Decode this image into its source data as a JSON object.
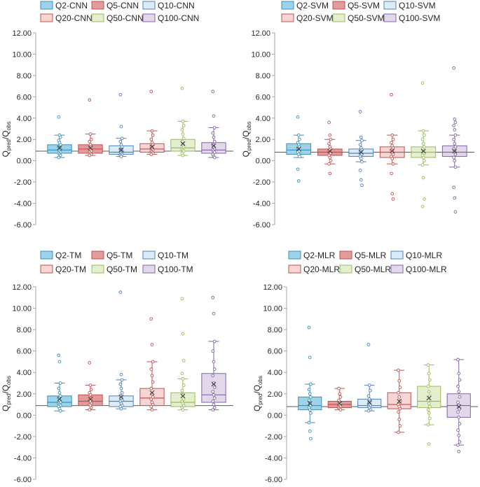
{
  "chart_data": [
    {
      "type": "box",
      "id": "cnn",
      "ylabel_main": "Q",
      "ylabel_sub1": "pred",
      "ylabel_sep": "/Q",
      "ylabel_sub2": "obs",
      "ylim": [
        -6,
        12
      ],
      "yticks": [
        "12.00",
        "10.00",
        "8.00",
        "6.00",
        "4.00",
        "2.00",
        "0.00",
        "-2.00",
        "-4.00",
        "-6.00"
      ],
      "reference_line": 0.9,
      "legend": [
        "Q2-CNN",
        "Q5-CNN",
        "Q10-CNN",
        "Q20-CNN",
        "Q50-CNN",
        "Q100-CNN"
      ],
      "series": [
        {
          "name": "Q2-CNN",
          "q1": 0.7,
          "median": 1.0,
          "q3": 1.5,
          "mean": 1.2,
          "wlo": 0.3,
          "whi": 2.4,
          "points": [
            4.1,
            2.4,
            2.2,
            1.9,
            1.7,
            1.5,
            1.3,
            1.2,
            1.1,
            1.0,
            0.9,
            0.8,
            0.7,
            0.6,
            0.5,
            0.3
          ]
        },
        {
          "name": "Q5-CNN",
          "q1": 0.7,
          "median": 1.1,
          "q3": 1.5,
          "mean": 1.2,
          "wlo": 0.5,
          "whi": 2.5,
          "points": [
            5.7,
            2.5,
            2.0,
            1.8,
            1.5,
            1.3,
            1.1,
            1.0,
            0.9,
            0.8,
            0.7,
            0.6,
            0.5
          ]
        },
        {
          "name": "Q10-CNN",
          "q1": 0.6,
          "median": 0.8,
          "q3": 1.4,
          "mean": 1.0,
          "wlo": 0.4,
          "whi": 2.1,
          "points": [
            6.2,
            3.2,
            2.1,
            1.8,
            1.5,
            1.3,
            1.1,
            1.0,
            0.9,
            0.8,
            0.7,
            0.6,
            0.5,
            0.4
          ]
        },
        {
          "name": "Q20-CNN",
          "q1": 0.8,
          "median": 1.1,
          "q3": 1.6,
          "mean": 1.3,
          "wlo": 0.6,
          "whi": 2.8,
          "points": [
            6.5,
            2.8,
            2.4,
            2.0,
            1.7,
            1.5,
            1.3,
            1.2,
            1.0,
            0.9,
            0.8,
            0.7,
            0.6
          ]
        },
        {
          "name": "Q50-CNN",
          "q1": 0.9,
          "median": 1.2,
          "q3": 2.0,
          "mean": 1.6,
          "wlo": 0.5,
          "whi": 3.7,
          "points": [
            6.8,
            3.7,
            3.3,
            2.9,
            2.5,
            2.1,
            1.8,
            1.5,
            1.3,
            1.1,
            1.0,
            0.9,
            0.7,
            0.5
          ]
        },
        {
          "name": "Q100-CNN",
          "q1": 0.7,
          "median": 1.0,
          "q3": 1.7,
          "mean": 1.4,
          "wlo": 0.3,
          "whi": 3.1,
          "points": [
            6.5,
            4.2,
            3.1,
            2.6,
            2.2,
            1.8,
            1.5,
            1.3,
            1.1,
            1.0,
            0.9,
            0.8,
            0.6,
            0.4,
            0.3
          ]
        }
      ]
    },
    {
      "type": "box",
      "id": "svm",
      "ylabel_main": "Q",
      "ylabel_sub1": "pred",
      "ylabel_sep": "/Q",
      "ylabel_sub2": "obs",
      "ylim": [
        -6,
        12
      ],
      "yticks": [
        "12.00",
        "10.00",
        "8.00",
        "6.00",
        "4.00",
        "2.00",
        "0.00",
        "-2.00",
        "-4.00",
        "-6.00"
      ],
      "reference_line": 0.8,
      "legend": [
        "Q2-SVM",
        "Q5-SVM",
        "Q10-SVM",
        "Q20-SVM",
        "Q50-SVM",
        "Q100-SVM"
      ],
      "series": [
        {
          "name": "Q2-SVM",
          "q1": 0.6,
          "median": 1.0,
          "q3": 1.6,
          "mean": 1.1,
          "wlo": 0.3,
          "whi": 2.4,
          "points": [
            4.1,
            2.4,
            2.0,
            1.7,
            1.5,
            1.3,
            1.1,
            1.0,
            0.9,
            0.8,
            0.6,
            0.4,
            -0.8,
            -1.9
          ]
        },
        {
          "name": "Q5-SVM",
          "q1": 0.5,
          "median": 0.8,
          "q3": 1.1,
          "mean": 0.9,
          "wlo": -0.3,
          "whi": 2.0,
          "points": [
            3.6,
            2.4,
            2.0,
            1.6,
            1.3,
            1.1,
            1.0,
            0.8,
            0.7,
            0.5,
            0.3,
            0.0,
            -0.3,
            -1.2
          ]
        },
        {
          "name": "Q10-SVM",
          "q1": 0.4,
          "median": 0.7,
          "q3": 1.1,
          "mean": 0.8,
          "wlo": -0.1,
          "whi": 1.9,
          "points": [
            4.6,
            2.2,
            1.9,
            1.5,
            1.2,
            1.0,
            0.9,
            0.7,
            0.6,
            0.4,
            0.2,
            -0.1,
            -0.9,
            -1.8,
            -2.3
          ]
        },
        {
          "name": "Q20-SVM",
          "q1": 0.3,
          "median": 0.8,
          "q3": 1.3,
          "mean": 0.9,
          "wlo": -0.3,
          "whi": 2.4,
          "points": [
            6.2,
            2.4,
            2.0,
            1.7,
            1.4,
            1.2,
            1.0,
            0.8,
            0.6,
            0.4,
            0.2,
            -0.3,
            -1.2,
            -3.1,
            -3.6
          ]
        },
        {
          "name": "Q50-SVM",
          "q1": 0.3,
          "median": 0.8,
          "q3": 1.3,
          "mean": 0.9,
          "wlo": -0.4,
          "whi": 2.8,
          "points": [
            7.3,
            2.8,
            2.4,
            2.0,
            1.6,
            1.3,
            1.1,
            0.9,
            0.7,
            0.5,
            0.3,
            0.0,
            -0.4,
            -1.6,
            -3.6,
            -4.3
          ]
        },
        {
          "name": "Q100-SVM",
          "q1": 0.4,
          "median": 0.8,
          "q3": 1.4,
          "mean": 0.9,
          "wlo": -0.6,
          "whi": 2.4,
          "points": [
            8.7,
            3.9,
            3.6,
            3.3,
            2.9,
            2.4,
            2.0,
            1.6,
            1.3,
            1.1,
            0.9,
            0.6,
            0.3,
            0.0,
            -0.6,
            -2.5,
            -3.5,
            -4.8
          ]
        }
      ]
    },
    {
      "type": "box",
      "id": "tm",
      "ylabel_main": "Q",
      "ylabel_sub1": "pred",
      "ylabel_sep": "/Q",
      "ylabel_sub2": "obs",
      "ylim": [
        -6,
        12
      ],
      "yticks": [
        "12.00",
        "10.00",
        "8.00",
        "6.00",
        "4.00",
        "2.00",
        "0.00",
        "-2.00",
        "-4.00",
        "-6.00"
      ],
      "reference_line": 0.9,
      "legend": [
        "Q2-TM",
        "Q5-TM",
        "Q10-TM",
        "Q20-TM",
        "Q50-TM",
        "Q100-TM"
      ],
      "series": [
        {
          "name": "Q2-TM",
          "q1": 0.8,
          "median": 1.2,
          "q3": 1.8,
          "mean": 1.5,
          "wlo": 0.4,
          "whi": 3.0,
          "points": [
            5.6,
            5.0,
            3.0,
            2.5,
            2.1,
            1.8,
            1.6,
            1.4,
            1.2,
            1.1,
            1.0,
            0.9,
            0.8,
            0.6,
            0.4
          ]
        },
        {
          "name": "Q5-TM",
          "q1": 0.9,
          "median": 1.3,
          "q3": 1.9,
          "mean": 1.5,
          "wlo": 0.5,
          "whi": 2.8,
          "points": [
            4.9,
            2.8,
            2.4,
            2.1,
            1.9,
            1.6,
            1.4,
            1.3,
            1.1,
            1.0,
            0.9,
            0.7,
            0.5
          ]
        },
        {
          "name": "Q10-TM",
          "q1": 0.8,
          "median": 1.3,
          "q3": 1.8,
          "mean": 1.7,
          "wlo": 0.6,
          "whi": 3.3,
          "points": [
            11.5,
            3.8,
            3.3,
            2.9,
            2.5,
            2.1,
            1.8,
            1.6,
            1.4,
            1.3,
            1.1,
            0.9,
            0.8,
            0.6
          ]
        },
        {
          "name": "Q20-TM",
          "q1": 0.9,
          "median": 1.6,
          "q3": 2.5,
          "mean": 2.1,
          "wlo": 0.5,
          "whi": 5.0,
          "points": [
            9.0,
            6.6,
            5.0,
            4.3,
            3.7,
            3.1,
            2.5,
            2.0,
            1.7,
            1.5,
            1.2,
            1.0,
            0.8,
            0.5
          ]
        },
        {
          "name": "Q50-TM",
          "q1": 0.8,
          "median": 1.2,
          "q3": 2.1,
          "mean": 1.8,
          "wlo": 0.5,
          "whi": 3.4,
          "points": [
            10.9,
            7.6,
            5.1,
            3.9,
            3.4,
            2.8,
            2.3,
            1.9,
            1.5,
            1.3,
            1.1,
            0.9,
            0.7,
            0.5
          ]
        },
        {
          "name": "Q100-TM",
          "q1": 1.2,
          "median": 1.9,
          "q3": 3.9,
          "mean": 2.9,
          "wlo": 0.5,
          "whi": 6.9,
          "points": [
            11.0,
            9.5,
            6.9,
            6.0,
            5.0,
            4.3,
            3.7,
            3.0,
            2.6,
            2.2,
            1.9,
            1.6,
            1.3,
            1.0,
            0.7,
            0.5
          ]
        }
      ]
    },
    {
      "type": "box",
      "id": "mlr",
      "ylabel_main": "Q",
      "ylabel_sub1": "pred",
      "ylabel_sep": "/Q",
      "ylabel_sub2": "obs",
      "ylim": [
        -6,
        12
      ],
      "yticks": [
        "12.00",
        "10.00",
        "8.00",
        "6.00",
        "4.00",
        "2.00",
        "0.00",
        "-2.00",
        "-4.00",
        "-6.00"
      ],
      "reference_line": 0.8,
      "legend": [
        "Q2-MLR",
        "Q5-MLR",
        "Q10-MLR",
        "Q20-MLR",
        "Q50-MLR",
        "Q100-MLR"
      ],
      "series": [
        {
          "name": "Q2-MLR",
          "q1": 0.5,
          "median": 0.9,
          "q3": 1.7,
          "mean": 1.1,
          "wlo": -0.7,
          "whi": 2.9,
          "points": [
            8.2,
            5.4,
            2.9,
            2.4,
            2.0,
            1.7,
            1.4,
            1.1,
            0.9,
            0.7,
            0.5,
            0.2,
            -0.7,
            -1.5,
            -2.2
          ]
        },
        {
          "name": "Q5-MLR",
          "q1": 0.7,
          "median": 1.0,
          "q3": 1.3,
          "mean": 1.1,
          "wlo": 0.5,
          "whi": 2.5,
          "points": [
            2.5,
            2.0,
            1.7,
            1.4,
            1.2,
            1.1,
            1.0,
            0.9,
            0.8,
            0.7,
            0.6,
            0.5
          ]
        },
        {
          "name": "Q10-MLR",
          "q1": 0.7,
          "median": 0.9,
          "q3": 1.5,
          "mean": 1.2,
          "wlo": 0.4,
          "whi": 2.8,
          "points": [
            6.6,
            2.8,
            2.3,
            1.8,
            1.5,
            1.3,
            1.1,
            1.0,
            0.9,
            0.8,
            0.7,
            0.5,
            0.4
          ]
        },
        {
          "name": "Q20-MLR",
          "q1": 0.6,
          "median": 1.0,
          "q3": 2.1,
          "mean": 1.3,
          "wlo": -1.6,
          "whi": 4.2,
          "points": [
            4.2,
            3.2,
            2.6,
            2.1,
            1.7,
            1.3,
            1.0,
            0.8,
            0.6,
            0.3,
            -0.4,
            -1.0,
            -1.6
          ]
        },
        {
          "name": "Q50-MLR",
          "q1": 0.7,
          "median": 1.3,
          "q3": 2.7,
          "mean": 1.6,
          "wlo": -0.9,
          "whi": 4.7,
          "points": [
            4.7,
            3.9,
            3.3,
            2.7,
            2.2,
            1.8,
            1.4,
            1.1,
            0.8,
            0.5,
            0.2,
            -0.3,
            -0.9,
            -2.7
          ]
        },
        {
          "name": "Q100-MLR",
          "q1": -0.2,
          "median": 0.9,
          "q3": 2.0,
          "mean": 0.8,
          "wlo": -2.8,
          "whi": 5.2,
          "points": [
            5.2,
            3.9,
            3.3,
            2.7,
            2.2,
            1.7,
            1.2,
            0.9,
            0.6,
            0.3,
            -0.2,
            -0.8,
            -1.4,
            -1.9,
            -2.5,
            -2.8,
            -3.4
          ]
        }
      ]
    }
  ],
  "colors": {
    "fills": [
      "#9dd3e8",
      "#e39a9a",
      "#dcecf6",
      "#f6d6d4",
      "#e3efcf",
      "#e2d8ea"
    ],
    "strokes": [
      "#3b8fbf",
      "#c0504d",
      "#4f81bd",
      "#c0504d",
      "#9bbb59",
      "#8064a2"
    ],
    "axis": "#a6a6a6",
    "reference": "#595959",
    "text": "#262626"
  }
}
